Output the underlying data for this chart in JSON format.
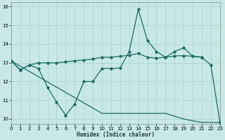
{
  "xlabel": "Humidex (Indice chaleur)",
  "background_color": "#c8e8e8",
  "line_color": "#1a6b60",
  "grid_color": "#a8d0d0",
  "xlim": [
    0,
    23
  ],
  "ylim": [
    9.75,
    16.25
  ],
  "yticks": [
    10,
    11,
    12,
    13,
    14,
    15,
    16
  ],
  "xticks": [
    0,
    1,
    2,
    3,
    4,
    5,
    6,
    7,
    8,
    9,
    10,
    11,
    12,
    13,
    14,
    15,
    16,
    17,
    18,
    19,
    20,
    21,
    22,
    23
  ],
  "line1_x": [
    0,
    1,
    2,
    3,
    4,
    5,
    6,
    7,
    8,
    9,
    10,
    11,
    12,
    13,
    14,
    15,
    16,
    17,
    18,
    19,
    20,
    21
  ],
  "line1_y": [
    13.1,
    12.62,
    12.88,
    13.0,
    13.0,
    13.0,
    13.05,
    13.1,
    13.15,
    13.2,
    13.3,
    13.3,
    13.35,
    13.4,
    13.5,
    13.3,
    13.25,
    13.3,
    13.37,
    13.38,
    13.35,
    13.3
  ],
  "line2_x": [
    0,
    1,
    2,
    3,
    4,
    5,
    6,
    7,
    8,
    9,
    10,
    11,
    12,
    13,
    14,
    15,
    16,
    17,
    18,
    19,
    20,
    21,
    22,
    23
  ],
  "line2_y": [
    13.1,
    12.62,
    12.88,
    12.7,
    11.7,
    10.9,
    10.2,
    10.8,
    12.0,
    12.0,
    12.7,
    12.7,
    12.72,
    13.6,
    15.85,
    14.2,
    13.6,
    13.3,
    13.6,
    13.8,
    13.35,
    13.3,
    12.88,
    9.82
  ],
  "line3_x": [
    0,
    1,
    2,
    3,
    4,
    5,
    6,
    7,
    8,
    9,
    10,
    11,
    12,
    13,
    14,
    15,
    16,
    17,
    18,
    19,
    20,
    21,
    22,
    23
  ],
  "line3_y": [
    13.1,
    12.82,
    12.54,
    12.26,
    11.98,
    11.7,
    11.42,
    11.14,
    10.86,
    10.58,
    10.3,
    10.3,
    10.3,
    10.3,
    10.3,
    10.3,
    10.3,
    10.3,
    10.15,
    10.0,
    9.9,
    9.82,
    9.82,
    9.82
  ]
}
